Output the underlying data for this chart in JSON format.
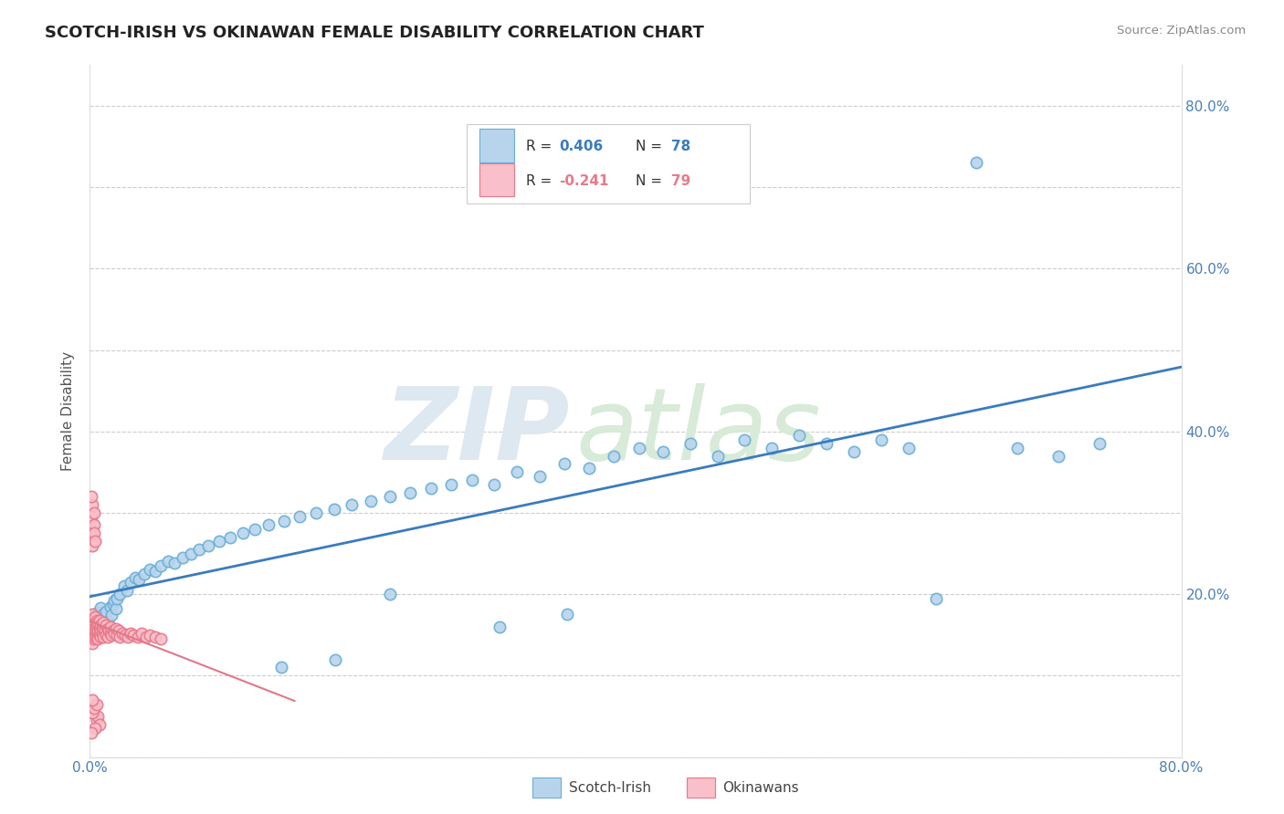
{
  "title": "SCOTCH-IRISH VS OKINAWAN FEMALE DISABILITY CORRELATION CHART",
  "source": "Source: ZipAtlas.com",
  "ylabel": "Female Disability",
  "xlim": [
    0.0,
    0.8
  ],
  "ylim": [
    0.0,
    0.85
  ],
  "x_tick_positions": [
    0.0,
    0.1,
    0.2,
    0.3,
    0.4,
    0.5,
    0.6,
    0.7,
    0.8
  ],
  "x_tick_labels": [
    "0.0%",
    "",
    "",
    "",
    "",
    "",
    "",
    "",
    "80.0%"
  ],
  "y_tick_positions": [
    0.0,
    0.1,
    0.2,
    0.3,
    0.4,
    0.5,
    0.6,
    0.7,
    0.8
  ],
  "y_tick_labels": [
    "",
    "",
    "20.0%",
    "",
    "40.0%",
    "",
    "60.0%",
    "",
    "80.0%"
  ],
  "color_scotch_fill": "#b8d4ec",
  "color_scotch_edge": "#6aaed6",
  "color_line_scotch": "#3a7bbf",
  "color_okinawan_fill": "#f9bfca",
  "color_okinawan_edge": "#e8788a",
  "color_line_okinawan": "#e07888",
  "grid_color": "#cccccc",
  "watermark_zip_color": "#dde8f0",
  "watermark_atlas_color": "#d8ead8",
  "legend_r1_val": "0.406",
  "legend_n1_val": "78",
  "legend_r2_val": "-0.241",
  "legend_n2_val": "79",
  "scotch_x": [
    0.001,
    0.002,
    0.003,
    0.004,
    0.005,
    0.006,
    0.007,
    0.008,
    0.009,
    0.01,
    0.011,
    0.012,
    0.013,
    0.015,
    0.016,
    0.017,
    0.018,
    0.019,
    0.02,
    0.022,
    0.025,
    0.027,
    0.03,
    0.033,
    0.036,
    0.04,
    0.044,
    0.048,
    0.052,
    0.057,
    0.062,
    0.068,
    0.074,
    0.08,
    0.087,
    0.095,
    0.103,
    0.112,
    0.121,
    0.131,
    0.142,
    0.154,
    0.166,
    0.179,
    0.192,
    0.206,
    0.22,
    0.235,
    0.25,
    0.265,
    0.28,
    0.296,
    0.313,
    0.33,
    0.348,
    0.366,
    0.384,
    0.403,
    0.42,
    0.44,
    0.46,
    0.48,
    0.5,
    0.52,
    0.54,
    0.56,
    0.58,
    0.6,
    0.62,
    0.65,
    0.68,
    0.71,
    0.74,
    0.3,
    0.35,
    0.22,
    0.18,
    0.14
  ],
  "scotch_y": [
    0.165,
    0.172,
    0.168,
    0.175,
    0.162,
    0.178,
    0.17,
    0.183,
    0.16,
    0.176,
    0.171,
    0.179,
    0.166,
    0.185,
    0.174,
    0.188,
    0.192,
    0.182,
    0.195,
    0.2,
    0.21,
    0.205,
    0.215,
    0.22,
    0.218,
    0.225,
    0.23,
    0.228,
    0.235,
    0.24,
    0.238,
    0.245,
    0.25,
    0.255,
    0.26,
    0.265,
    0.27,
    0.275,
    0.28,
    0.285,
    0.29,
    0.295,
    0.3,
    0.305,
    0.31,
    0.315,
    0.32,
    0.325,
    0.33,
    0.335,
    0.34,
    0.335,
    0.35,
    0.345,
    0.36,
    0.355,
    0.37,
    0.38,
    0.375,
    0.385,
    0.37,
    0.39,
    0.38,
    0.395,
    0.385,
    0.375,
    0.39,
    0.38,
    0.195,
    0.73,
    0.38,
    0.37,
    0.385,
    0.16,
    0.175,
    0.2,
    0.12,
    0.11
  ],
  "okinawan_x": [
    0.0005,
    0.001,
    0.001,
    0.001,
    0.002,
    0.002,
    0.002,
    0.002,
    0.003,
    0.003,
    0.003,
    0.003,
    0.004,
    0.004,
    0.004,
    0.004,
    0.005,
    0.005,
    0.005,
    0.005,
    0.006,
    0.006,
    0.006,
    0.007,
    0.007,
    0.007,
    0.008,
    0.008,
    0.008,
    0.009,
    0.009,
    0.01,
    0.01,
    0.01,
    0.011,
    0.012,
    0.012,
    0.013,
    0.013,
    0.014,
    0.015,
    0.015,
    0.016,
    0.017,
    0.018,
    0.019,
    0.02,
    0.021,
    0.022,
    0.024,
    0.026,
    0.028,
    0.03,
    0.032,
    0.035,
    0.038,
    0.041,
    0.044,
    0.048,
    0.052,
    0.001,
    0.001,
    0.002,
    0.002,
    0.003,
    0.003,
    0.004,
    0.005,
    0.006,
    0.007,
    0.002,
    0.003,
    0.001,
    0.004,
    0.002,
    0.003,
    0.001,
    0.005,
    0.002
  ],
  "okinawan_y": [
    0.155,
    0.16,
    0.145,
    0.17,
    0.15,
    0.165,
    0.14,
    0.175,
    0.155,
    0.16,
    0.145,
    0.17,
    0.155,
    0.165,
    0.148,
    0.172,
    0.155,
    0.162,
    0.148,
    0.168,
    0.155,
    0.165,
    0.145,
    0.158,
    0.168,
    0.15,
    0.155,
    0.162,
    0.148,
    0.16,
    0.152,
    0.158,
    0.165,
    0.148,
    0.155,
    0.162,
    0.15,
    0.158,
    0.148,
    0.155,
    0.152,
    0.16,
    0.15,
    0.155,
    0.152,
    0.158,
    0.15,
    0.155,
    0.148,
    0.152,
    0.15,
    0.148,
    0.152,
    0.15,
    0.148,
    0.152,
    0.148,
    0.15,
    0.148,
    0.145,
    0.28,
    0.295,
    0.27,
    0.26,
    0.285,
    0.275,
    0.265,
    0.045,
    0.05,
    0.04,
    0.31,
    0.3,
    0.32,
    0.035,
    0.055,
    0.06,
    0.03,
    0.065,
    0.07
  ]
}
